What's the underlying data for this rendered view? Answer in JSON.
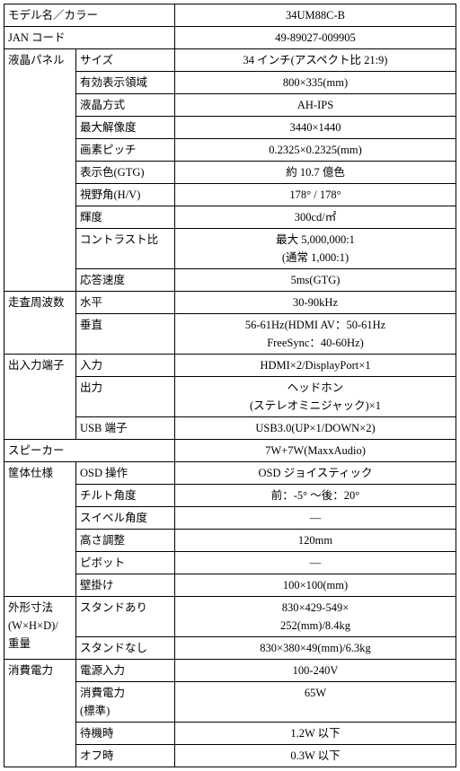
{
  "header": {
    "model_label": "モデル名／カラー",
    "model_value": "34UM88C-B",
    "jan_label": "JAN コード",
    "jan_value": "49-89027-009905"
  },
  "panel": {
    "label": "液晶パネル",
    "rows": [
      {
        "sub": "サイズ",
        "val": "34 インチ(アスペクト比  21:9)"
      },
      {
        "sub": "有効表示領域",
        "val": "800×335(mm)"
      },
      {
        "sub": "液晶方式",
        "val": "AH-IPS"
      },
      {
        "sub": "最大解像度",
        "val": "3440×1440"
      },
      {
        "sub": "画素ピッチ",
        "val": "0.2325×0.2325(mm)"
      },
      {
        "sub": "表示色(GTG)",
        "val": "約  10.7 億色"
      },
      {
        "sub": "視野角(H/V)",
        "val": "178°  / 178°"
      },
      {
        "sub": "輝度",
        "val": "300cd/㎡"
      },
      {
        "sub": "コントラスト比",
        "val": "最大  5,000,000:1\n(通常 1,000:1)"
      },
      {
        "sub": "応答速度",
        "val": "5ms(GTG)"
      }
    ]
  },
  "scan": {
    "label": "走査周波数",
    "rows": [
      {
        "sub": "水平",
        "val": "30-90kHz"
      },
      {
        "sub": "垂直",
        "val": "56-61Hz(HDMI AV：50-61Hz\nFreeSync：40-60Hz)"
      }
    ]
  },
  "io": {
    "label": "出入力端子",
    "rows": [
      {
        "sub": "入力",
        "val": "HDMI×2/DisplayPort×1"
      },
      {
        "sub": "出力",
        "val": "ヘッドホン\n(ステレオミニジャック)×1"
      },
      {
        "sub": "USB 端子",
        "val": "USB3.0(UP×1/DOWN×2)"
      }
    ]
  },
  "speaker": {
    "label": "スピーカー",
    "val": "7W+7W(MaxxAudio)"
  },
  "chassis": {
    "label": "筐体仕様",
    "rows": [
      {
        "sub": "OSD 操作",
        "val": "OSD ジョイスティック"
      },
      {
        "sub": "チルト角度",
        "val": "前：-5° ～後：20°"
      },
      {
        "sub": "スイベル角度",
        "val": "―"
      },
      {
        "sub": "高さ調整",
        "val": "120mm"
      },
      {
        "sub": "ピボット",
        "val": "―"
      },
      {
        "sub": "壁掛け",
        "val": "100×100(mm)"
      }
    ]
  },
  "dims": {
    "label": "外形寸法\n(W×H×D)/\n重量",
    "rows": [
      {
        "sub": "スタンドあり",
        "val": "830×429-549×\n252(mm)/8.4kg"
      },
      {
        "sub": "スタンドなし",
        "val": "830×380×49(mm)/6.3kg"
      }
    ]
  },
  "power": {
    "label": "消費電力",
    "rows": [
      {
        "sub": "電源入力",
        "val": "100-240V"
      },
      {
        "sub": "消費電力\n(標準)",
        "val": "65W"
      },
      {
        "sub": "待機時",
        "val": "1.2W 以下"
      },
      {
        "sub": "オフ時",
        "val": "0.3W 以下"
      }
    ]
  }
}
